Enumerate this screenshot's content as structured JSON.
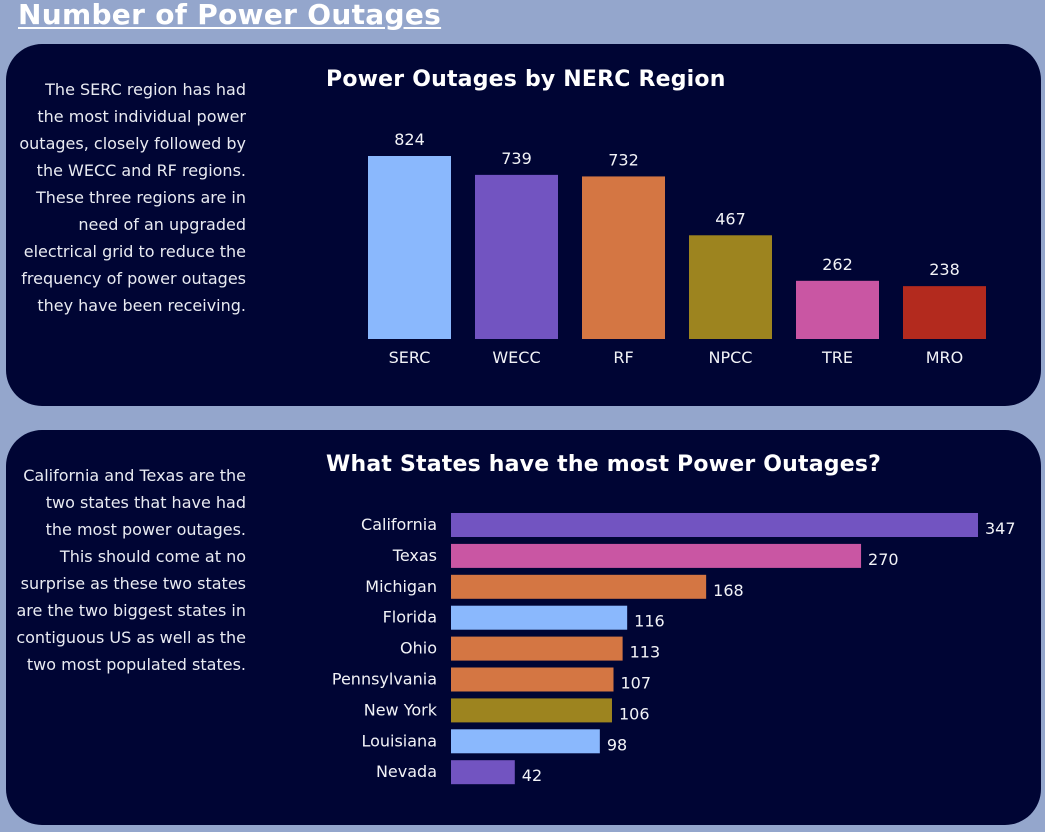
{
  "page": {
    "title": "Number of Power Outages"
  },
  "panels": [
    {
      "note": "The SERC region has had the most individual power outages, closely followed by the WECC and RF regions. These three regions are in need of an upgraded electrical grid to reduce the frequency of power outages they have been receiving."
    },
    {
      "note": "California and Texas are the two states that have had the most power outages. This should come at no surprise as these two states are the two biggest states in contiguous US as well as the two most populated states."
    }
  ],
  "chart_data": [
    {
      "type": "bar",
      "orientation": "vertical",
      "title": "Power Outages by NERC Region",
      "categories": [
        "SERC",
        "WECC",
        "RF",
        "NPCC",
        "TRE",
        "MRO"
      ],
      "values": [
        824,
        739,
        732,
        467,
        262,
        238
      ],
      "colors": [
        "#8ab8fd",
        "#7254c1",
        "#d47643",
        "#9d841f",
        "#c956a3",
        "#b32a1e"
      ],
      "data_labels": true,
      "grid": false,
      "ylim": [
        0,
        824
      ]
    },
    {
      "type": "bar",
      "orientation": "horizontal",
      "title": "What States have the most Power Outages?",
      "categories": [
        "California",
        "Texas",
        "Michigan",
        "Florida",
        "Ohio",
        "Pennsylvania",
        "New York",
        "Louisiana",
        "Nevada"
      ],
      "values": [
        347,
        270,
        168,
        116,
        113,
        107,
        106,
        98,
        42
      ],
      "colors": [
        "#7254c1",
        "#c956a3",
        "#d47643",
        "#8ab8fd",
        "#d47643",
        "#d47643",
        "#9d841f",
        "#8ab8fd",
        "#7254c1"
      ],
      "data_labels": true,
      "grid": false,
      "xlim": [
        0,
        347
      ]
    }
  ]
}
